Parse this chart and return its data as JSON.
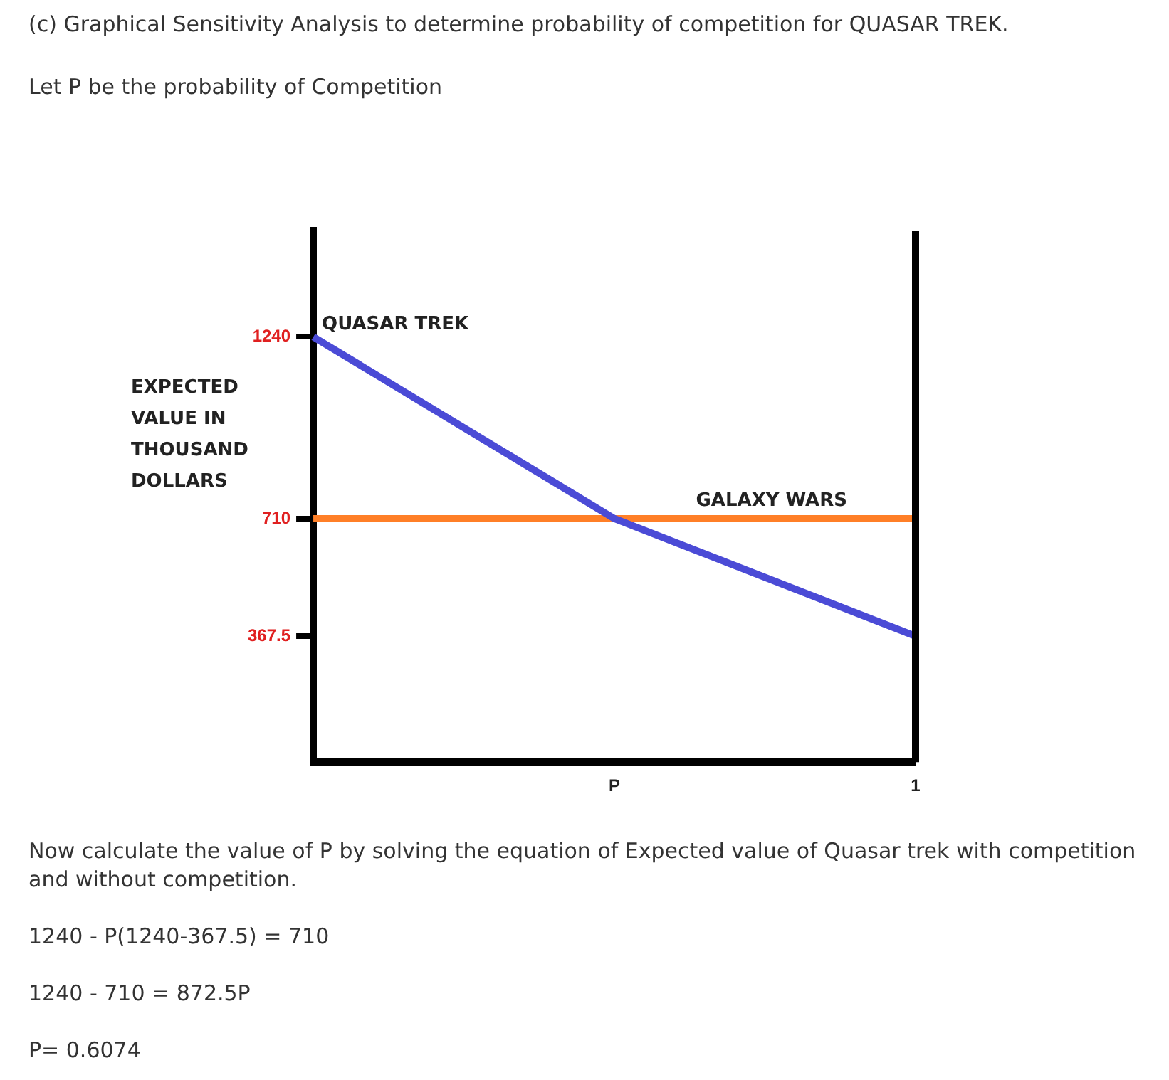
{
  "chart_data": {
    "type": "line",
    "title": "(c) Graphical Sensitivity Analysis to determine probability of competition for QUASAR TREK.",
    "subtitle": "Let P be the probability of Competition",
    "ylabel": "EXPECTED VALUE IN THOUSAND DOLLARS",
    "categories": [
      null,
      "P",
      "1"
    ],
    "ylim": [
      0,
      1550
    ],
    "yticks": [
      367.5,
      710,
      1240
    ],
    "series": [
      {
        "name": "QUASAR TREK",
        "color": "#4b4bd6",
        "values": [
          1240,
          710,
          367.5
        ]
      },
      {
        "name": "GALAXY WARS",
        "color": "#ff7f27",
        "values": [
          710,
          710,
          710
        ]
      }
    ],
    "legend": false,
    "marker": "none",
    "line_style": "solid",
    "annotations": [
      "Now calculate the value of P by solving the equation of Expected value of Quasar trek with competition and without competition.",
      "1240 - P(1240-367.5) = 710",
      "1240 - 710 = 872.5P",
      "P= 0.6074"
    ]
  }
}
